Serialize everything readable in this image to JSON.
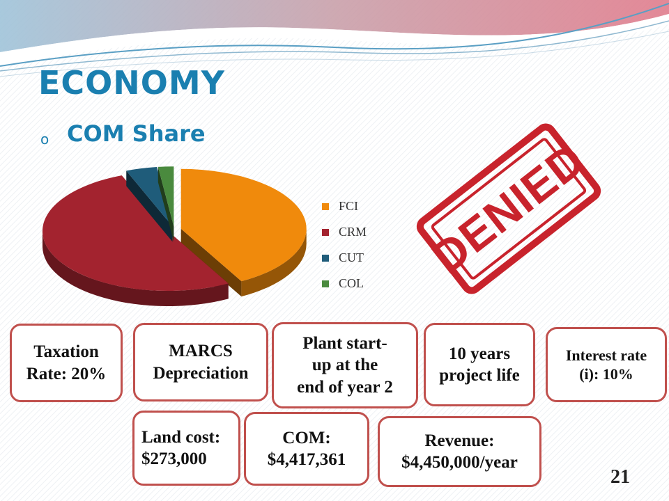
{
  "slide": {
    "title": "ECONOMY",
    "bullet": "o",
    "subtitle": "COM Share",
    "page_number": "21"
  },
  "chart_data": {
    "type": "pie",
    "title": "",
    "categories": [
      "FCI",
      "CRM",
      "CUT",
      "COL"
    ],
    "values": [
      42,
      52,
      4,
      2
    ],
    "colors": [
      "#f08a0c",
      "#a3232f",
      "#1f5c7a",
      "#4a8a3e"
    ],
    "exploded": true,
    "three_d": true,
    "legend_position": "right"
  },
  "stamp": {
    "text": "DENIED",
    "color": "#c8232c"
  },
  "info_boxes": [
    {
      "text": "Taxation\nRate: 20%"
    },
    {
      "text": "MARCS\nDepreciation"
    },
    {
      "text": "Plant start-\nup at the\nend of year 2"
    },
    {
      "text": "10 years\nproject life"
    },
    {
      "text": "Interest rate\n(i): 10%"
    },
    {
      "text": "Land cost:\n$273,000"
    },
    {
      "text": "COM:\n$4,417,361"
    },
    {
      "text": "Revenue:\n$4,450,000/year"
    }
  ]
}
